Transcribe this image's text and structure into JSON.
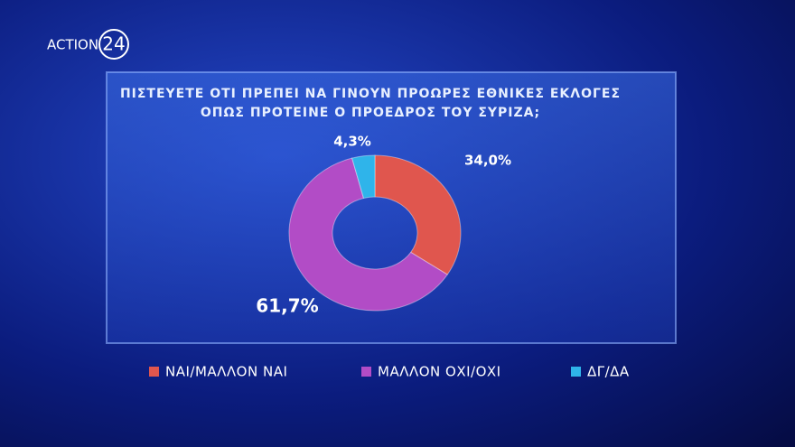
{
  "logo": {
    "text": "ACTION",
    "number": "24"
  },
  "chart_data": {
    "type": "pie",
    "title": [
      "ΠΙΣΤΕΥΕΤΕ ΟΤΙ ΠΡΕΠΕΙ ΝΑ ΓΙΝΟΥΝ ΠΡΟΩΡΕΣ ΕΘΝΙΚΕΣ ΕΚΛΟΓΕΣ",
      "ΟΠΩΣ ΠΡΟΤΕΙΝΕ Ο ΠΡΟΕΔΡΟΣ ΤΟΥ ΣΥΡΙΖΑ;"
    ],
    "categories": [
      "ΝΑΙ/ΜΑΛΛΟΝ ΝΑΙ",
      "ΜΑΛΛΟΝ ΟΧΙ/ΟΧΙ",
      "ΔΓ/ΔΑ"
    ],
    "values": [
      34.0,
      61.7,
      4.3
    ],
    "value_labels": [
      "34,0%",
      "61,7%",
      "4,3%"
    ],
    "colors": [
      "#e0564e",
      "#b24cc6",
      "#2fb4ea"
    ],
    "donut": true
  }
}
